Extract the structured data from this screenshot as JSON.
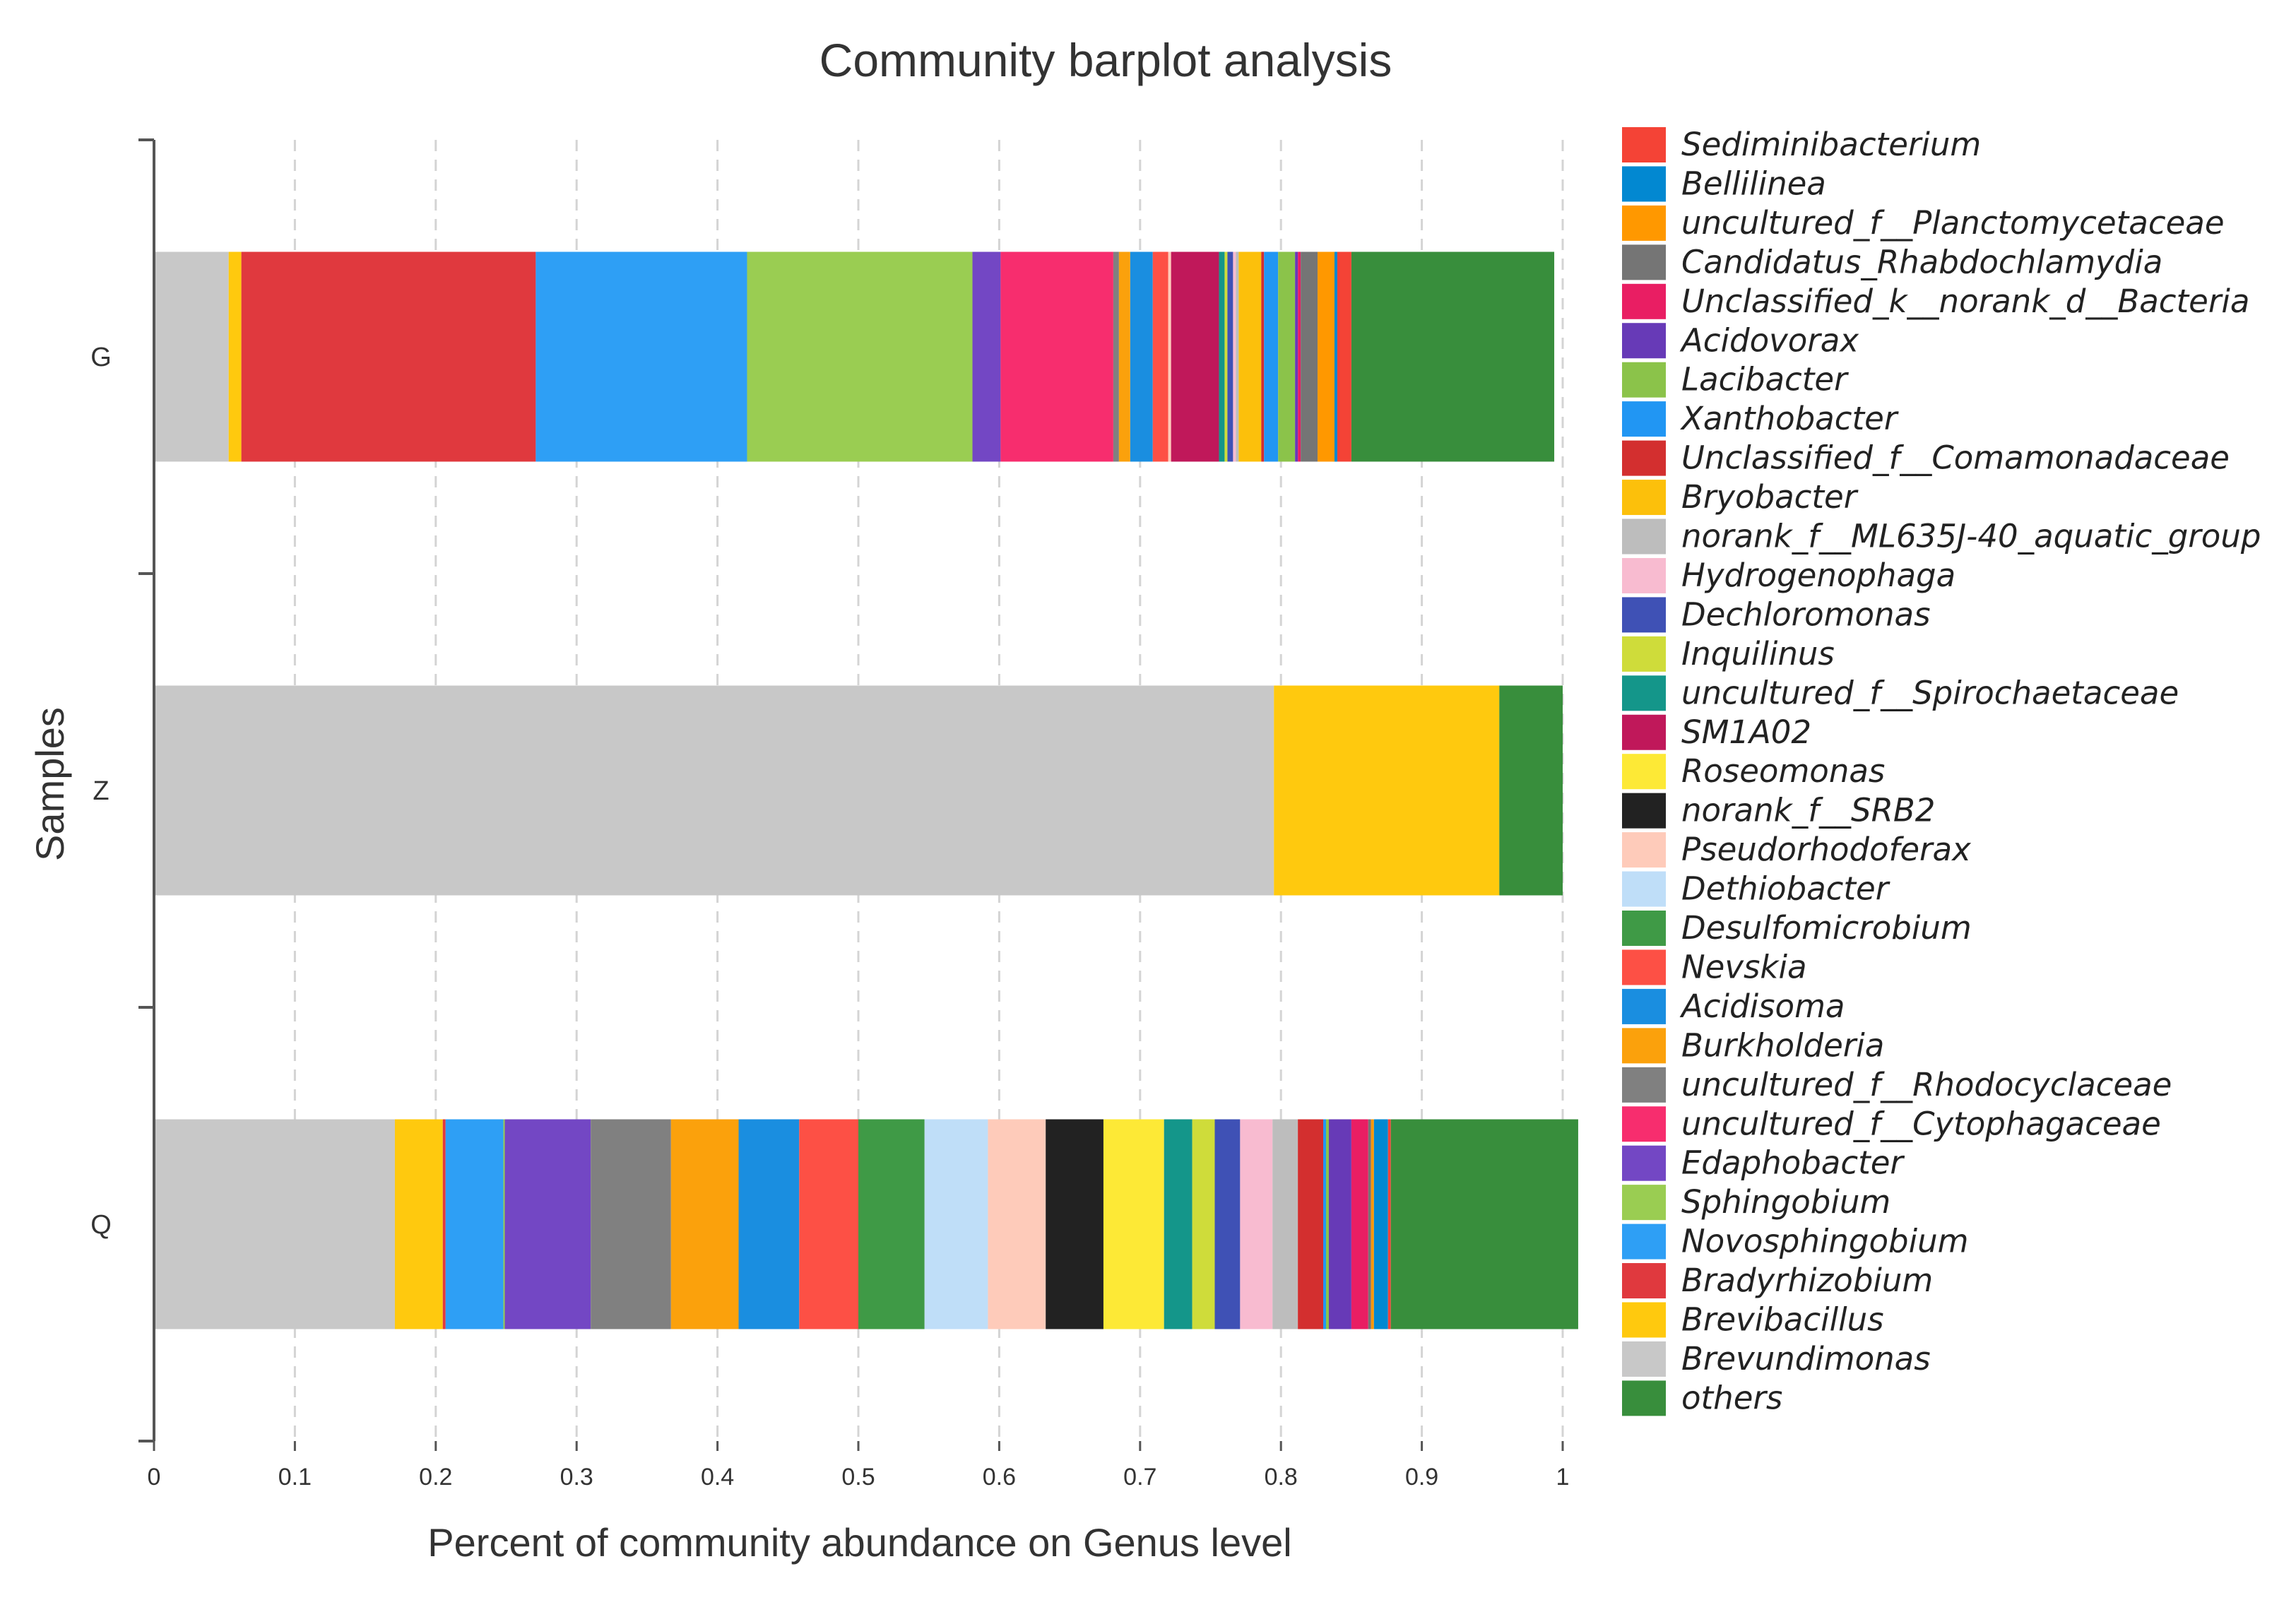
{
  "chart_data": {
    "type": "bar",
    "orientation": "horizontal",
    "stacked": true,
    "title": "Community barplot analysis",
    "xlabel": "Percent of community abundance on Genus level",
    "ylabel": "Samples",
    "xlim": [
      0,
      1
    ],
    "x_ticks": [
      "0",
      "0.1",
      "0.2",
      "0.3",
      "0.4",
      "0.5",
      "0.6",
      "0.7",
      "0.8",
      "0.9",
      "1"
    ],
    "grid": "vertical-dashed",
    "legend_position": "right",
    "categories": [
      "G",
      "Z",
      "Q"
    ],
    "series": [
      {
        "name": "Brevundimonas",
        "color": "#c8c8c8",
        "values": [
          0.053,
          0.795,
          0.171
        ]
      },
      {
        "name": "Brevibacillus",
        "color": "#ffc90e",
        "values": [
          0.009,
          0.16,
          0.034
        ]
      },
      {
        "name": "Bradyrhizobium",
        "color": "#e0393e",
        "values": [
          0.209,
          0,
          0.002
        ]
      },
      {
        "name": "Novosphingobium",
        "color": "#2e9ff5",
        "values": [
          0.15,
          0,
          0.041
        ]
      },
      {
        "name": "Sphingobium",
        "color": "#9acd52",
        "values": [
          0.16,
          0,
          0.001
        ]
      },
      {
        "name": "Edaphobacter",
        "color": "#7347c4",
        "values": [
          0.02,
          0,
          0.061
        ]
      },
      {
        "name": "uncultured_f__Cytophagaceae",
        "color": "#f72d6e",
        "values": [
          0.08,
          0,
          0
        ]
      },
      {
        "name": "uncultured_f__Rhodocyclaceae",
        "color": "#808080",
        "values": [
          0.004,
          0,
          0.057
        ]
      },
      {
        "name": "Burkholderia",
        "color": "#fba10c",
        "values": [
          0.008,
          0,
          0.048
        ]
      },
      {
        "name": "Acidisoma",
        "color": "#1a8ee0",
        "values": [
          0.016,
          0,
          0.043
        ]
      },
      {
        "name": "Nevskia",
        "color": "#fd5045",
        "values": [
          0.011,
          0,
          0.042
        ]
      },
      {
        "name": "Desulfomicrobium",
        "color": "#3f9a46",
        "values": [
          0,
          0,
          0.047
        ]
      },
      {
        "name": "Dethiobacter",
        "color": "#bfdef8",
        "values": [
          0,
          0,
          0.045
        ]
      },
      {
        "name": "Pseudorhodoferax",
        "color": "#fecbba",
        "values": [
          0.002,
          0,
          0.041
        ]
      },
      {
        "name": "norank_f__SRB2",
        "color": "#222222",
        "values": [
          0,
          0,
          0.041
        ]
      },
      {
        "name": "Roseomonas",
        "color": "#fde936",
        "values": [
          0,
          0,
          0.043
        ]
      },
      {
        "name": "SM1A02",
        "color": "#c0185a",
        "values": [
          0.034,
          0,
          0
        ]
      },
      {
        "name": "uncultured_f__Spirochaetaceae",
        "color": "#14968a",
        "values": [
          0.004,
          0,
          0.02
        ]
      },
      {
        "name": "Inquilinus",
        "color": "#cfdc3a",
        "values": [
          0.002,
          0,
          0.016
        ]
      },
      {
        "name": "Dechloromonas",
        "color": "#3f51b5",
        "values": [
          0.004,
          0,
          0.018
        ]
      },
      {
        "name": "Hydrogenophaga",
        "color": "#f8bbd0",
        "values": [
          0.002,
          0,
          0.023
        ]
      },
      {
        "name": "norank_f__ML635J-40_aquatic_group",
        "color": "#bdbdbd",
        "values": [
          0.002,
          0,
          0.018
        ]
      },
      {
        "name": "Bryobacter",
        "color": "#fcc00b",
        "values": [
          0.016,
          0,
          0
        ]
      },
      {
        "name": "Unclassified_f__Comamonadaceae",
        "color": "#d32f2f",
        "values": [
          0.002,
          0,
          0.018
        ]
      },
      {
        "name": "Xanthobacter",
        "color": "#2196f3",
        "values": [
          0.01,
          0,
          0.002
        ]
      },
      {
        "name": "Lacibacter",
        "color": "#8bc34a",
        "values": [
          0.012,
          0,
          0.002
        ]
      },
      {
        "name": "Acidovorax",
        "color": "#673ab7",
        "values": [
          0.002,
          0,
          0.016
        ]
      },
      {
        "name": "Unclassified_k__norank_d__Bacteria",
        "color": "#e91e63",
        "values": [
          0.002,
          0,
          0.012
        ]
      },
      {
        "name": "Candidatus_Rhabdochlamydia",
        "color": "#757575",
        "values": [
          0.012,
          0,
          0.002
        ]
      },
      {
        "name": "uncultured_f__Planctomycetaceae",
        "color": "#ff9800",
        "values": [
          0.012,
          0,
          0.002
        ]
      },
      {
        "name": "Bellilinea",
        "color": "#0288d1",
        "values": [
          0.002,
          0,
          0.01
        ]
      },
      {
        "name": "Sediminibacterium",
        "color": "#f44336",
        "values": [
          0.01,
          0,
          0.002
        ]
      },
      {
        "name": "others",
        "color": "#388e3c",
        "values": [
          0.144,
          0.045,
          0.133
        ]
      }
    ],
    "legend_entries": [
      {
        "name": "Sediminibacterium",
        "color": "#f44336"
      },
      {
        "name": "Bellilinea",
        "color": "#0288d1"
      },
      {
        "name": "uncultured_f__Planctomycetaceae",
        "color": "#ff9800"
      },
      {
        "name": "Candidatus_Rhabdochlamydia",
        "color": "#757575"
      },
      {
        "name": "Unclassified_k__norank_d__Bacteria",
        "color": "#e91e63"
      },
      {
        "name": "Acidovorax",
        "color": "#673ab7"
      },
      {
        "name": "Lacibacter",
        "color": "#8bc34a"
      },
      {
        "name": "Xanthobacter",
        "color": "#2196f3"
      },
      {
        "name": "Unclassified_f__Comamonadaceae",
        "color": "#d32f2f"
      },
      {
        "name": "Bryobacter",
        "color": "#fcc00b"
      },
      {
        "name": "norank_f__ML635J-40_aquatic_group",
        "color": "#bdbdbd"
      },
      {
        "name": "Hydrogenophaga",
        "color": "#f8bbd0"
      },
      {
        "name": "Dechloromonas",
        "color": "#3f51b5"
      },
      {
        "name": "Inquilinus",
        "color": "#cfdc3a"
      },
      {
        "name": "uncultured_f__Spirochaetaceae",
        "color": "#14968a"
      },
      {
        "name": "SM1A02",
        "color": "#c0185a"
      },
      {
        "name": "Roseomonas",
        "color": "#fde936"
      },
      {
        "name": "norank_f__SRB2",
        "color": "#222222"
      },
      {
        "name": "Pseudorhodoferax",
        "color": "#fecbba"
      },
      {
        "name": "Dethiobacter",
        "color": "#bfdef8"
      },
      {
        "name": "Desulfomicrobium",
        "color": "#3f9a46"
      },
      {
        "name": "Nevskia",
        "color": "#fd5045"
      },
      {
        "name": "Acidisoma",
        "color": "#1a8ee0"
      },
      {
        "name": "Burkholderia",
        "color": "#fba10c"
      },
      {
        "name": "uncultured_f__Rhodocyclaceae",
        "color": "#808080"
      },
      {
        "name": "uncultured_f__Cytophagaceae",
        "color": "#f72d6e"
      },
      {
        "name": "Edaphobacter",
        "color": "#7347c4"
      },
      {
        "name": "Sphingobium",
        "color": "#9acd52"
      },
      {
        "name": "Novosphingobium",
        "color": "#2e9ff5"
      },
      {
        "name": "Bradyrhizobium",
        "color": "#e0393e"
      },
      {
        "name": "Brevibacillus",
        "color": "#ffc90e"
      },
      {
        "name": "Brevundimonas",
        "color": "#c8c8c8"
      },
      {
        "name": "others",
        "color": "#388e3c"
      }
    ]
  }
}
